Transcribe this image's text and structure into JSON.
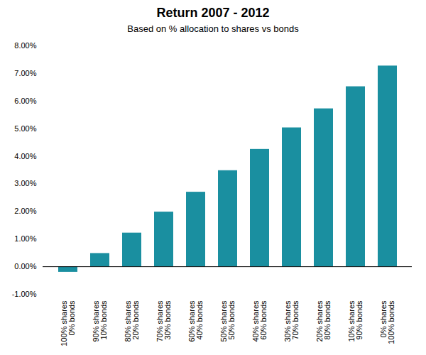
{
  "chart_data": {
    "type": "bar",
    "title": "Return 2007 - 2012",
    "subtitle": "Based on % allocation to shares vs bonds",
    "categories": [
      "100% shares\n0% bonds",
      "90% shares\n10% bonds",
      "80% shares\n20% bonds",
      "70% shares\n30% bonds",
      "60% shares\n40% bonds",
      "50% shares\n50% bonds",
      "40% shares\n60% bonds",
      "30% shares\n70% bonds",
      "20% shares\n80% bonds",
      "10% shares\n90% bonds",
      "0% shares\n100% bonds"
    ],
    "values": [
      -0.002,
      0.0048,
      0.0122,
      0.0198,
      0.027,
      0.0348,
      0.0425,
      0.0503,
      0.0572,
      0.0652,
      0.0727
    ],
    "color": "#1a8fa0",
    "ylim": [
      -0.01,
      0.08
    ],
    "yticks": [
      {
        "value": -0.01,
        "label": "-1.00%"
      },
      {
        "value": 0.0,
        "label": "0.00%"
      },
      {
        "value": 0.01,
        "label": "1.00%"
      },
      {
        "value": 0.02,
        "label": "2.00%"
      },
      {
        "value": 0.03,
        "label": "3.00%"
      },
      {
        "value": 0.04,
        "label": "4.00%"
      },
      {
        "value": 0.05,
        "label": "5.00%"
      },
      {
        "value": 0.06,
        "label": "6.00%"
      },
      {
        "value": 0.07,
        "label": "7.00%"
      },
      {
        "value": 0.08,
        "label": "8.00%"
      }
    ],
    "grid": false
  }
}
